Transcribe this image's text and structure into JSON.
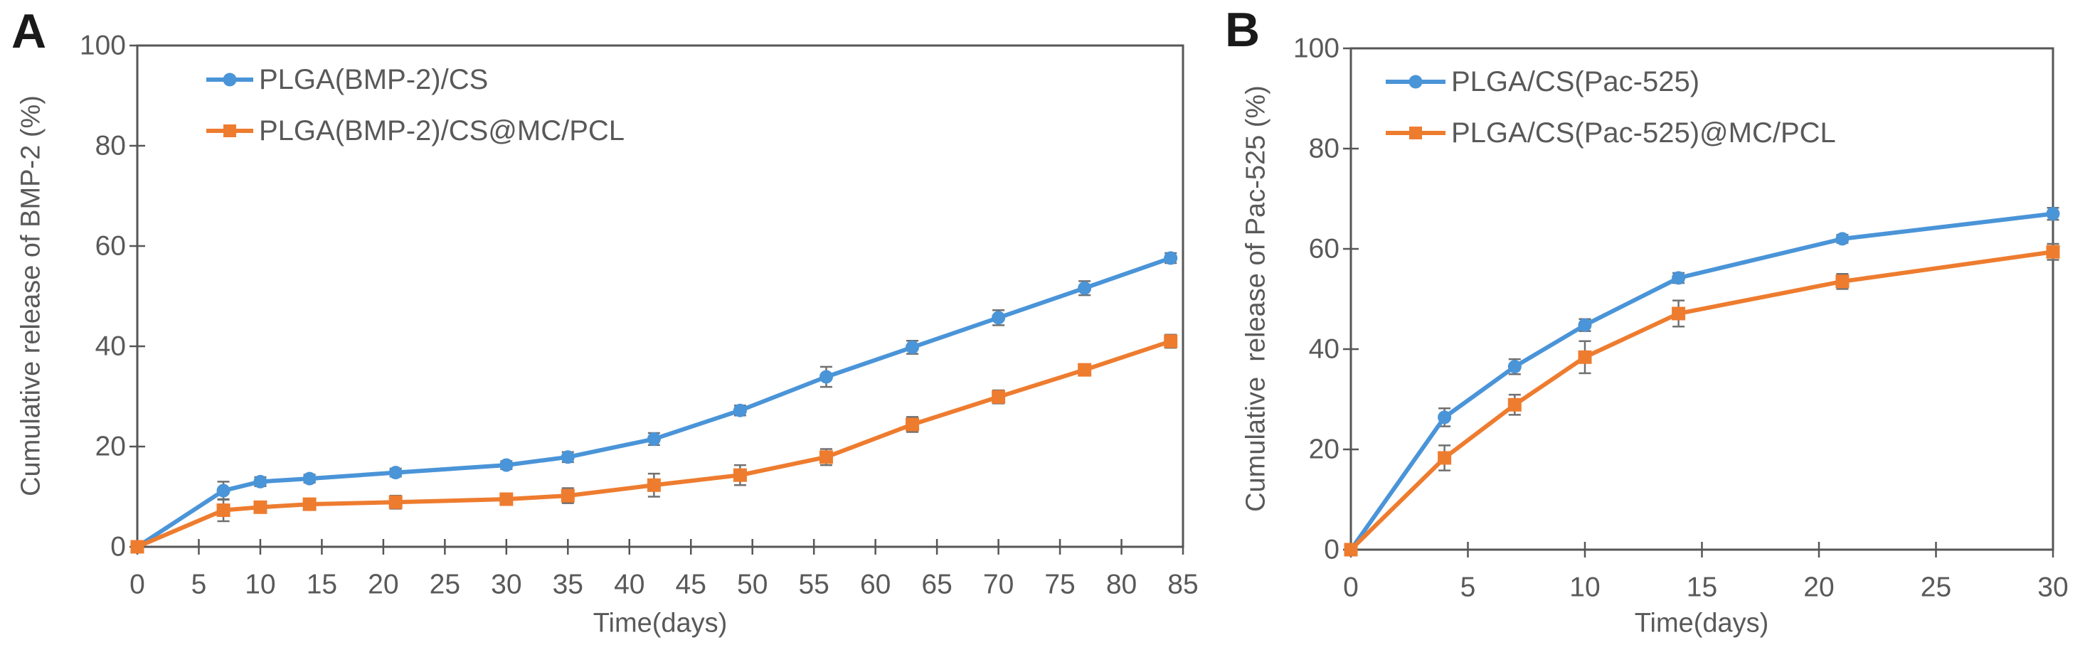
{
  "figure": {
    "background": "#ffffff",
    "axis_color": "#565656",
    "text_color": "#595959",
    "error_bar_color": "#707070"
  },
  "chart_data": [
    {
      "panel_label": "A",
      "type": "line",
      "xlabel": "Time(days)",
      "ylabel": "Cumulative release of BMP-2 (%)",
      "xlim": [
        0,
        85
      ],
      "ylim": [
        0,
        100
      ],
      "xticks": [
        0,
        5,
        10,
        15,
        20,
        25,
        30,
        35,
        40,
        45,
        50,
        55,
        60,
        65,
        70,
        75,
        80,
        85
      ],
      "yticks": [
        0,
        20,
        40,
        60,
        80,
        100
      ],
      "grid": false,
      "legend_position": "inside-top-left",
      "x": [
        0,
        7,
        10,
        14,
        21,
        30,
        35,
        42,
        49,
        56,
        63,
        70,
        77,
        84
      ],
      "series": [
        {
          "name": "PLGA(BMP-2)/CS",
          "color": "#4A94D8",
          "marker": "circle",
          "values": [
            0,
            11.2,
            13.0,
            13.6,
            14.8,
            16.3,
            17.9,
            21.5,
            27.2,
            33.9,
            39.8,
            45.7,
            51.6,
            57.6
          ],
          "errors": [
            0,
            1.8,
            0.9,
            0.8,
            0.8,
            0.8,
            1.0,
            1.2,
            1.0,
            2.0,
            1.3,
            1.5,
            1.4,
            1.0
          ]
        },
        {
          "name": "PLGA(BMP-2)/CS@MC/PCL",
          "color": "#EE7C2F",
          "marker": "square",
          "values": [
            0,
            7.3,
            7.9,
            8.5,
            8.9,
            9.5,
            10.2,
            12.3,
            14.3,
            17.9,
            24.4,
            29.9,
            35.3,
            41.0
          ],
          "errors": [
            0,
            2.2,
            0.8,
            1.0,
            1.3,
            1.0,
            1.5,
            2.3,
            2.0,
            1.6,
            1.5,
            1.3,
            1.0,
            1.3
          ]
        }
      ]
    },
    {
      "panel_label": "B",
      "type": "line",
      "xlabel": "Time(days)",
      "ylabel": "Cumulative  release of Pac-525 (%)",
      "xlim": [
        0,
        30
      ],
      "ylim": [
        0,
        100
      ],
      "xticks": [
        0,
        5,
        10,
        15,
        20,
        25,
        30
      ],
      "yticks": [
        0,
        20,
        40,
        60,
        80,
        100
      ],
      "grid": false,
      "legend_position": "inside-top-left",
      "x": [
        0,
        4,
        7,
        10,
        14,
        21,
        30
      ],
      "series": [
        {
          "name": "PLGA/CS(Pac-525)",
          "color": "#4A94D8",
          "marker": "circle",
          "values": [
            0,
            26.4,
            36.5,
            44.8,
            54.2,
            62.0,
            67.0
          ],
          "errors": [
            0,
            1.8,
            1.5,
            1.2,
            1.0,
            0.8,
            1.2
          ]
        },
        {
          "name": "PLGA/CS(Pac-525)@MC/PCL",
          "color": "#EE7C2F",
          "marker": "square",
          "values": [
            0,
            18.3,
            28.9,
            38.4,
            47.1,
            53.5,
            59.4
          ],
          "errors": [
            0,
            2.5,
            2.0,
            3.2,
            2.6,
            1.5,
            1.6
          ]
        }
      ]
    }
  ]
}
